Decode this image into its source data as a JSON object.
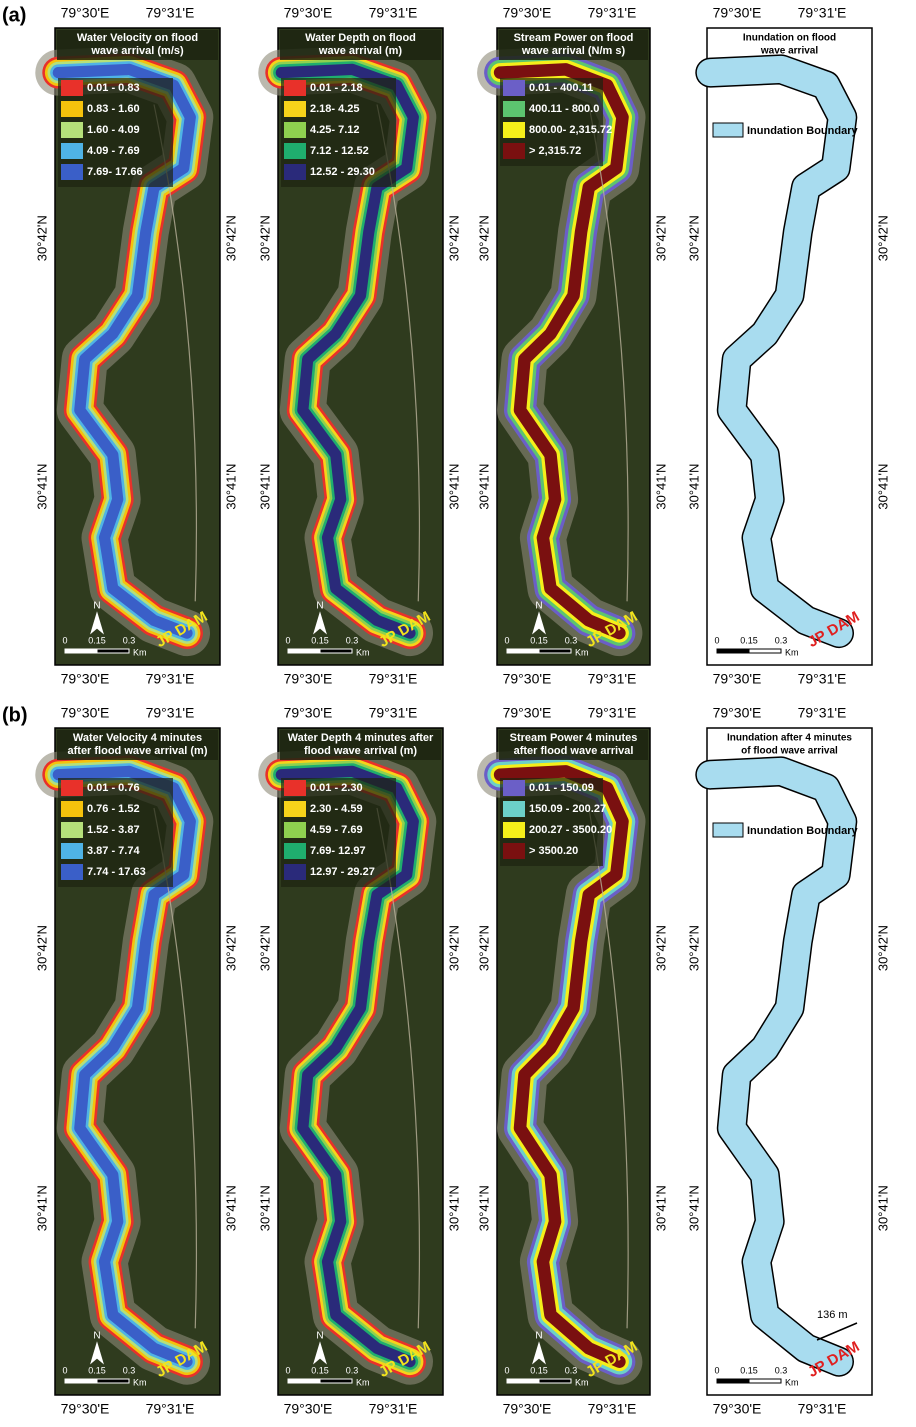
{
  "rows": [
    {
      "label": "(a)",
      "panels": [
        {
          "title": [
            "Water Velocity on flood",
            "wave arrival (m/s)"
          ],
          "legend": [
            {
              "label": "0.01 - 0.83",
              "color": "#e8312a"
            },
            {
              "label": "0.83 - 1.60",
              "color": "#f5c20c"
            },
            {
              "label": "1.60 - 4.09",
              "color": "#b5e07a"
            },
            {
              "label": "4.09 - 7.69",
              "color": "#4fb3e6"
            },
            {
              "label": "7.69- 17.66",
              "color": "#3a5fc8"
            }
          ],
          "lon_top": [
            "79°30'E",
            "79°31'E"
          ],
          "lon_bottom": [
            "79°30'E",
            "79°31'E"
          ],
          "lat_left": [
            "30°42'N",
            "30°41'N"
          ],
          "lat_right": [
            "30°42'N",
            "30°41'N"
          ],
          "scale": [
            "0",
            "0.15",
            "0.3",
            "Km"
          ],
          "north": "N",
          "dam": "JP DAM"
        },
        {
          "title": [
            "Water Depth on flood",
            "wave arrival (m)"
          ],
          "legend": [
            {
              "label": "0.01 - 2.18",
              "color": "#e8312a"
            },
            {
              "label": "2.18- 4.25",
              "color": "#f7d31a"
            },
            {
              "label": "4.25- 7.12",
              "color": "#8fd14f"
            },
            {
              "label": "7.12 - 12.52",
              "color": "#1fae6e"
            },
            {
              "label": "12.52 - 29.30",
              "color": "#2a2a7a"
            }
          ],
          "lon_top": [
            "79°30'E",
            "79°31'E"
          ],
          "lon_bottom": [
            "79°30'E",
            "79°31'E"
          ],
          "lat_left": [
            "30°42'N",
            "30°41'N"
          ],
          "lat_right": [
            "30°42'N",
            "30°41'N"
          ],
          "scale": [
            "0",
            "0.15",
            "0.3",
            "Km"
          ],
          "north": "N",
          "dam": "JP DAM"
        },
        {
          "title": [
            "Stream Power on flood",
            "wave arrival (N/m s)"
          ],
          "legend": [
            {
              "label": "0.01 - 400.11",
              "color": "#6b5fc7"
            },
            {
              "label": "400.11 - 800.0",
              "color": "#5cc46f"
            },
            {
              "label": "800.00- 2,315.72",
              "color": "#f5ef1a"
            },
            {
              "label": "> 2,315.72",
              "color": "#7a1010"
            }
          ],
          "lon_top": [
            "79°30'E",
            "79°31'E"
          ],
          "lon_bottom": [
            "79°30'E",
            "79°31'E"
          ],
          "lat_left": [
            "30°42'N",
            "30°41'N"
          ],
          "lat_right": [
            "30°42'N",
            "30°41'N"
          ],
          "scale": [
            "0",
            "0.15",
            "0.3",
            "Km"
          ],
          "north": "N",
          "dam": "JP DAM"
        },
        {
          "title": [
            "Inundation on flood",
            "wave arrival"
          ],
          "legend": [
            {
              "label": "Inundation Boundary",
              "color": "#a8dcef"
            }
          ],
          "lon_top": [
            "79°30'E",
            "79°31'E"
          ],
          "lon_bottom": [
            "79°30'E",
            "79°31'E"
          ],
          "lat_left": [
            "30°42'N",
            "30°41'N"
          ],
          "lat_right": [
            "30°42'N",
            "30°41'N"
          ],
          "scale": [
            "0",
            "0.15",
            "0.3",
            "Km"
          ],
          "dam": "JP DAM"
        }
      ]
    },
    {
      "label": "(b)",
      "panels": [
        {
          "title": [
            "Water Velocity 4 minutes",
            "after flood wave arrival (m)"
          ],
          "legend": [
            {
              "label": "0.01 - 0.76",
              "color": "#e8312a"
            },
            {
              "label": "0.76 - 1.52",
              "color": "#f5c20c"
            },
            {
              "label": "1.52 - 3.87",
              "color": "#b5e07a"
            },
            {
              "label": "3.87 - 7.74",
              "color": "#4fb3e6"
            },
            {
              "label": "7.74 - 17.63",
              "color": "#3a5fc8"
            }
          ],
          "lon_top": [
            "79°30'E",
            "79°31'E"
          ],
          "lon_bottom": [
            "79°30'E",
            "79°31'E"
          ],
          "lat_left": [
            "30°42'N",
            "30°41'N"
          ],
          "lat_right": [
            "30°42'N",
            "30°41'N"
          ],
          "scale": [
            "0",
            "0.15",
            "0.3",
            "Km"
          ],
          "north": "N",
          "dam": "JP DAM"
        },
        {
          "title": [
            "Water Depth 4 minutes after",
            "flood wave arrival (m)"
          ],
          "legend": [
            {
              "label": "0.01 - 2.30",
              "color": "#e8312a"
            },
            {
              "label": "2.30 - 4.59",
              "color": "#f7d31a"
            },
            {
              "label": "4.59 - 7.69",
              "color": "#8fd14f"
            },
            {
              "label": "7.69- 12.97",
              "color": "#1fae6e"
            },
            {
              "label": "12.97 - 29.27",
              "color": "#2a2a7a"
            }
          ],
          "lon_top": [
            "79°30'E",
            "79°31'E"
          ],
          "lon_bottom": [
            "79°30'E",
            "79°31'E"
          ],
          "lat_left": [
            "30°42'N",
            "30°41'N"
          ],
          "lat_right": [
            "30°42'N",
            "30°41'N"
          ],
          "scale": [
            "0",
            "0.15",
            "0.3",
            "Km"
          ],
          "north": "N",
          "dam": "JP DAM"
        },
        {
          "title": [
            "Stream Power 4 minutes",
            "after flood wave arrival"
          ],
          "legend": [
            {
              "label": "0.01 - 150.09",
              "color": "#6b5fc7"
            },
            {
              "label": "150.09 - 200.27",
              "color": "#6cd0c8"
            },
            {
              "label": "200.27 - 3500.20",
              "color": "#f5ef1a"
            },
            {
              "label": "> 3500.20",
              "color": "#7a1010"
            }
          ],
          "lon_top": [
            "79°30'E",
            "79°31'E"
          ],
          "lon_bottom": [
            "79°30'E",
            "79°31'E"
          ],
          "lat_left": [
            "30°42'N",
            "30°41'N"
          ],
          "lat_right": [
            "30°42'N",
            "30°41'N"
          ],
          "scale": [
            "0",
            "0.15",
            "0.3",
            "Km"
          ],
          "north": "N",
          "dam": "JP DAM"
        },
        {
          "title": [
            "Inundation after 4 minutes",
            "of flood wave arrival"
          ],
          "legend": [
            {
              "label": "Inundation Boundary",
              "color": "#a8dcef"
            }
          ],
          "lon_top": [
            "79°30'E",
            "79°31'E"
          ],
          "lon_bottom": [
            "79°30'E",
            "79°31'E"
          ],
          "lat_left": [
            "30°42'N",
            "30°41'N"
          ],
          "lat_right": [
            "30°42'N",
            "30°41'N"
          ],
          "scale": [
            "0",
            "0.15",
            "0.3",
            "Km"
          ],
          "dam": "JP DAM",
          "annotation": "136 m"
        }
      ]
    }
  ]
}
